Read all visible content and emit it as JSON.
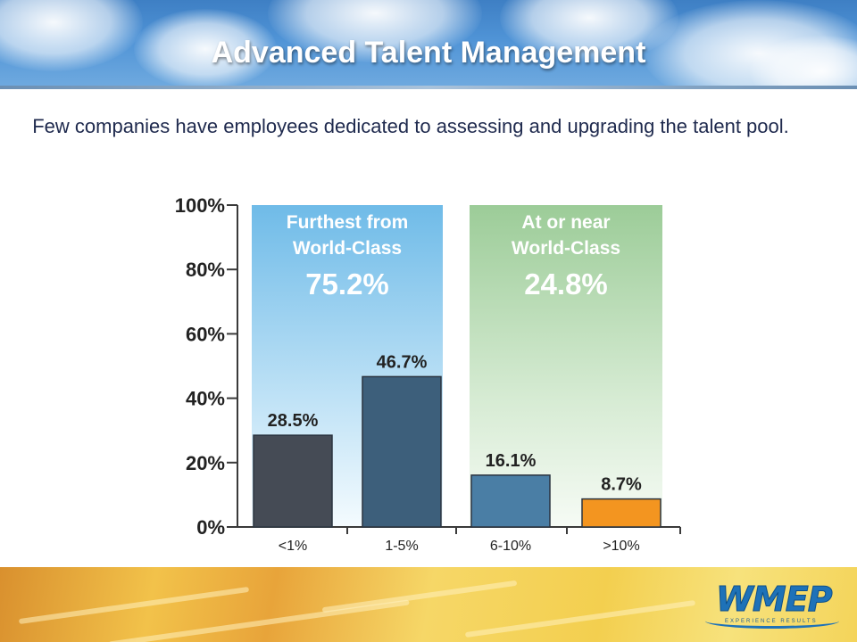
{
  "header": {
    "title": "Advanced Talent Management"
  },
  "subtitle": "Few companies have employees dedicated to assessing and upgrading the talent pool.",
  "logo": {
    "text": "WMEP",
    "tagline": "EXPERIENCE RESULTS"
  },
  "colors": {
    "bar_1": "#454b55",
    "bar_2": "#3d5f7b",
    "bar_3": "#4a7ea5",
    "bar_4": "#f39520",
    "panel_left": "#6fbbe8",
    "panel_right": "#9ccc98"
  },
  "chart_data": {
    "type": "bar",
    "title": "",
    "xlabel": "",
    "ylabel": "",
    "categories": [
      "<1%",
      "1-5%",
      "6-10%",
      ">10%"
    ],
    "values": [
      28.5,
      46.7,
      16.1,
      8.7
    ],
    "value_labels": [
      "28.5%",
      "46.7%",
      "16.1%",
      "8.7%"
    ],
    "ylim": [
      0,
      100
    ],
    "yticks": [
      0,
      20,
      40,
      60,
      80,
      100
    ],
    "ytick_labels": [
      "0%",
      "20%",
      "40%",
      "60%",
      "80%",
      "100%"
    ],
    "grid": false,
    "groups": [
      {
        "label_line1": "Furthest from",
        "label_line2": "World-Class",
        "value_label": "75.2%",
        "categories": [
          0,
          1
        ]
      },
      {
        "label_line1": "At or near",
        "label_line2": "World-Class",
        "value_label": "24.8%",
        "categories": [
          2,
          3
        ]
      }
    ]
  }
}
